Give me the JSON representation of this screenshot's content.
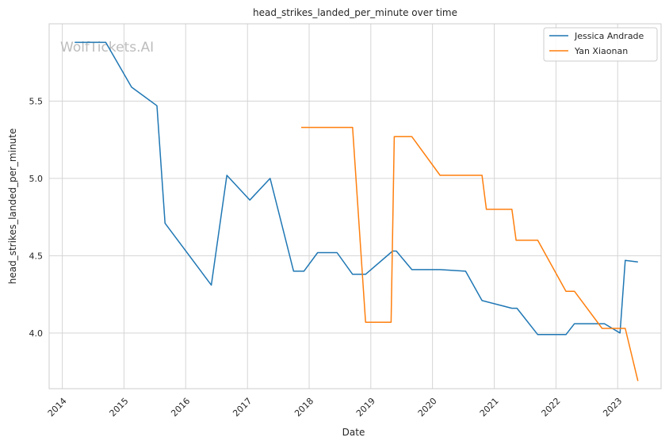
{
  "watermark": "WolfTickets.AI",
  "chart_data": {
    "type": "line",
    "title": "head_strikes_landed_per_minute over time",
    "xlabel": "Date",
    "ylabel": "head_strikes_landed_per_minute",
    "x_ticks": [
      "2014",
      "2015",
      "2016",
      "2017",
      "2018",
      "2019",
      "2020",
      "2021",
      "2022",
      "2023"
    ],
    "y_ticks": [
      "4.0",
      "4.5",
      "5.0",
      "5.5"
    ],
    "xlim": [
      "2013-10-15",
      "2023-09-15"
    ],
    "ylim": [
      3.64,
      6.0
    ],
    "grid": true,
    "legend_position": "top-right",
    "series": [
      {
        "name": "Jessica Andrade",
        "color": "#1f77b4",
        "points": [
          [
            "2014-03-15",
            5.88
          ],
          [
            "2014-09-15",
            5.88
          ],
          [
            "2015-02-15",
            5.59
          ],
          [
            "2015-07-15",
            5.47
          ],
          [
            "2015-09-01",
            4.71
          ],
          [
            "2016-06-01",
            4.31
          ],
          [
            "2016-09-01",
            5.02
          ],
          [
            "2017-01-15",
            4.86
          ],
          [
            "2017-05-15",
            5.0
          ],
          [
            "2017-10-01",
            4.4
          ],
          [
            "2017-12-01",
            4.4
          ],
          [
            "2018-02-20",
            4.52
          ],
          [
            "2018-06-15",
            4.52
          ],
          [
            "2018-09-15",
            4.38
          ],
          [
            "2018-12-01",
            4.38
          ],
          [
            "2019-05-10",
            4.53
          ],
          [
            "2019-06-01",
            4.53
          ],
          [
            "2019-09-01",
            4.41
          ],
          [
            "2020-02-15",
            4.41
          ],
          [
            "2020-07-15",
            4.4
          ],
          [
            "2020-10-20",
            4.21
          ],
          [
            "2021-04-15",
            4.16
          ],
          [
            "2021-05-15",
            4.16
          ],
          [
            "2021-09-15",
            3.99
          ],
          [
            "2022-03-01",
            3.99
          ],
          [
            "2022-04-20",
            4.06
          ],
          [
            "2022-10-15",
            4.06
          ],
          [
            "2023-01-15",
            4.0
          ],
          [
            "2023-02-15",
            4.47
          ],
          [
            "2023-05-01",
            4.46
          ]
        ]
      },
      {
        "name": "Yan Xiaonan",
        "color": "#ff7f0e",
        "points": [
          [
            "2017-11-15",
            5.33
          ],
          [
            "2018-09-15",
            5.33
          ],
          [
            "2018-12-01",
            4.07
          ],
          [
            "2019-05-01",
            4.07
          ],
          [
            "2019-05-20",
            5.27
          ],
          [
            "2019-09-01",
            5.27
          ],
          [
            "2020-02-15",
            5.02
          ],
          [
            "2020-10-20",
            5.02
          ],
          [
            "2020-11-15",
            4.8
          ],
          [
            "2021-04-15",
            4.8
          ],
          [
            "2021-05-10",
            4.6
          ],
          [
            "2021-09-15",
            4.6
          ],
          [
            "2022-03-01",
            4.27
          ],
          [
            "2022-04-20",
            4.27
          ],
          [
            "2022-10-01",
            4.03
          ],
          [
            "2023-02-15",
            4.03
          ],
          [
            "2023-05-01",
            3.69
          ]
        ]
      }
    ]
  }
}
